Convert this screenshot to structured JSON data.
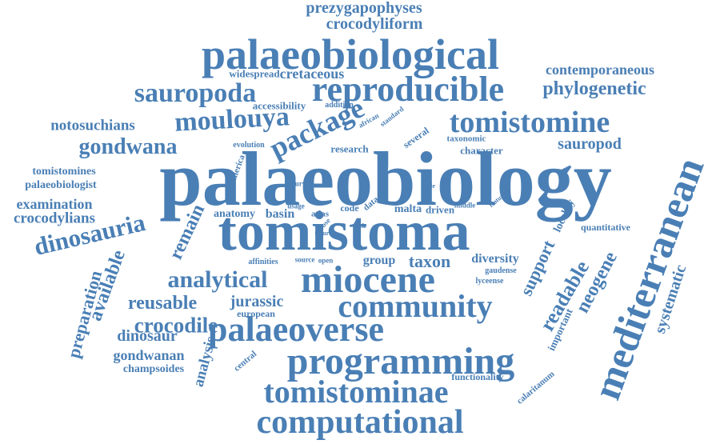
{
  "cloud": {
    "color": "#4a7fb5",
    "words": [
      {
        "text": "prezygapophyses"
      },
      {
        "text": "crocodyliform"
      },
      {
        "text": "palaeobiological"
      },
      {
        "text": "contemporaneous"
      },
      {
        "text": "widespread"
      },
      {
        "text": "cretaceous"
      },
      {
        "text": "reproducible"
      },
      {
        "text": "phylogenetic"
      },
      {
        "text": "sauropoda"
      },
      {
        "text": "accessibility"
      },
      {
        "text": "addition"
      },
      {
        "text": "notosuchians"
      },
      {
        "text": "moulouya"
      },
      {
        "text": "package"
      },
      {
        "text": "tomistomine"
      },
      {
        "text": "african"
      },
      {
        "text": "standard"
      },
      {
        "text": "mediterranean"
      },
      {
        "text": "gondwana"
      },
      {
        "text": "evolution"
      },
      {
        "text": "research"
      },
      {
        "text": "several"
      },
      {
        "text": "taxonomic"
      },
      {
        "text": "character"
      },
      {
        "text": "sauropod"
      },
      {
        "text": "palaeobiology"
      },
      {
        "text": "tomistomines"
      },
      {
        "text": "palaeobiologist"
      },
      {
        "text": "america"
      },
      {
        "text": "survey"
      },
      {
        "text": "clade"
      },
      {
        "text": "examination"
      },
      {
        "text": "crocodylians"
      },
      {
        "text": "anatomy"
      },
      {
        "text": "basin"
      },
      {
        "text": "usage"
      },
      {
        "text": "atlas"
      },
      {
        "text": "code"
      },
      {
        "text": "data"
      },
      {
        "text": "malta"
      },
      {
        "text": "driven"
      },
      {
        "text": "middle"
      },
      {
        "text": "feature"
      },
      {
        "text": "close"
      },
      {
        "text": "future"
      },
      {
        "text": "lack"
      },
      {
        "text": "locality"
      },
      {
        "text": "quantitative"
      },
      {
        "text": "dinosauria"
      },
      {
        "text": "remain"
      },
      {
        "text": "tomistoma"
      },
      {
        "text": "available"
      },
      {
        "text": "preparation"
      },
      {
        "text": "affinities"
      },
      {
        "text": "source"
      },
      {
        "text": "open"
      },
      {
        "text": "group"
      },
      {
        "text": "taxon"
      },
      {
        "text": "diversity"
      },
      {
        "text": "support"
      },
      {
        "text": "gaudense"
      },
      {
        "text": "lyceense"
      },
      {
        "text": "systematic"
      },
      {
        "text": "analytical"
      },
      {
        "text": "miocene"
      },
      {
        "text": "neogene"
      },
      {
        "text": "readable"
      },
      {
        "text": "reusable"
      },
      {
        "text": "jurassic"
      },
      {
        "text": "community"
      },
      {
        "text": "european"
      },
      {
        "text": "crocodile"
      },
      {
        "text": "palaeoverse"
      },
      {
        "text": "important"
      },
      {
        "text": "dinosaur"
      },
      {
        "text": "analysis"
      },
      {
        "text": "gondwanan"
      },
      {
        "text": "programming"
      },
      {
        "text": "champsoides"
      },
      {
        "text": "central"
      },
      {
        "text": "functionality"
      },
      {
        "text": "calaritanum"
      },
      {
        "text": "tomistominae"
      },
      {
        "text": "computational"
      }
    ]
  }
}
